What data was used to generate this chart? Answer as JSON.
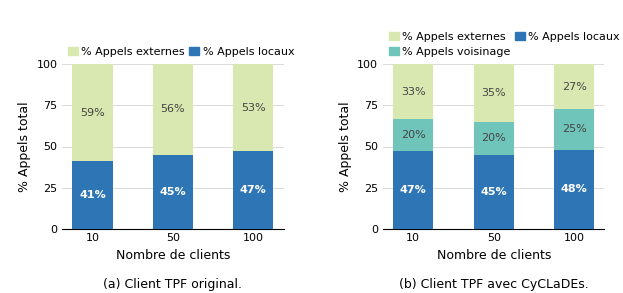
{
  "categories": [
    "10",
    "50",
    "100"
  ],
  "chart_a": {
    "caption": "(a) Client TPF original.",
    "legend_labels": [
      "% Appels externes",
      "% Appels locaux"
    ],
    "local": [
      41,
      45,
      47
    ],
    "external": [
      59,
      56,
      53
    ],
    "colors_local": "#2e75b6",
    "colors_external": "#d9e8b0",
    "local_labels": [
      "41%",
      "45%",
      "47%"
    ],
    "external_labels": [
      "59%",
      "56%",
      "53%"
    ]
  },
  "chart_b": {
    "caption": "(b) Client TPF avec CyCLaDEs.",
    "legend_labels": [
      "% Appels externes",
      "% Appels voisinage",
      "% Appels locaux"
    ],
    "local": [
      47,
      45,
      48
    ],
    "voisinage": [
      20,
      20,
      25
    ],
    "external": [
      33,
      35,
      27
    ],
    "colors_local": "#2e75b6",
    "colors_voisinage": "#70c5bb",
    "colors_external": "#d9e8b0",
    "local_labels": [
      "47%",
      "45%",
      "48%"
    ],
    "voisinage_labels": [
      "20%",
      "20%",
      "25%"
    ],
    "external_labels": [
      "33%",
      "35%",
      "27%"
    ]
  },
  "ylabel": "% Appels total",
  "xlabel": "Nombre de clients",
  "ylim": [
    0,
    100
  ],
  "yticks": [
    0,
    25,
    50,
    75,
    100
  ],
  "bar_width": 0.5,
  "label_fontsize": 8,
  "tick_fontsize": 8,
  "legend_fontsize": 8,
  "axis_label_fontsize": 9,
  "caption_fontsize": 9
}
